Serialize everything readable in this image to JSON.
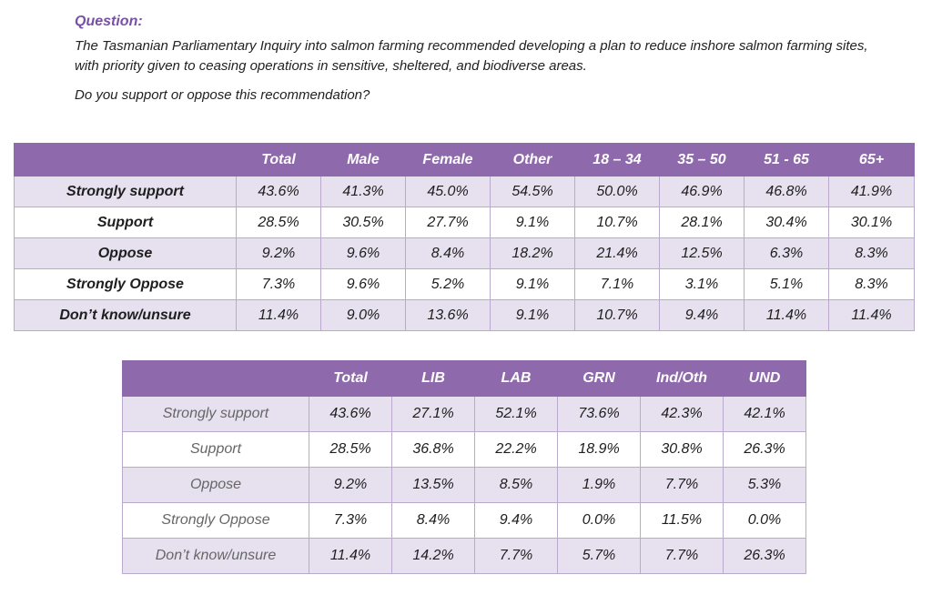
{
  "question": {
    "label": "Question:",
    "text": "The Tasmanian Parliamentary Inquiry into salmon farming recommended developing a plan to reduce inshore salmon farming sites, with priority given to ceasing operations in sensitive, sheltered, and biodiverse areas.",
    "ask": "Do you support or oppose this recommendation?"
  },
  "table1": {
    "headers": [
      "",
      "Total",
      "Male",
      "Female",
      "Other",
      "18 – 34",
      "35 – 50",
      "51 - 65",
      "65+"
    ],
    "rows": [
      {
        "label": "Strongly support",
        "values": [
          "43.6%",
          "41.3%",
          "45.0%",
          "54.5%",
          "50.0%",
          "46.9%",
          "46.8%",
          "41.9%"
        ]
      },
      {
        "label": "Support",
        "values": [
          "28.5%",
          "30.5%",
          "27.7%",
          "9.1%",
          "10.7%",
          "28.1%",
          "30.4%",
          "30.1%"
        ]
      },
      {
        "label": "Oppose",
        "values": [
          "9.2%",
          "9.6%",
          "8.4%",
          "18.2%",
          "21.4%",
          "12.5%",
          "6.3%",
          "8.3%"
        ]
      },
      {
        "label": "Strongly Oppose",
        "values": [
          "7.3%",
          "9.6%",
          "5.2%",
          "9.1%",
          "7.1%",
          "3.1%",
          "5.1%",
          "8.3%"
        ]
      },
      {
        "label": "Don’t know/unsure",
        "values": [
          "11.4%",
          "9.0%",
          "13.6%",
          "9.1%",
          "10.7%",
          "9.4%",
          "11.4%",
          "11.4%"
        ]
      }
    ]
  },
  "table2": {
    "headers": [
      "",
      "Total",
      "LIB",
      "LAB",
      "GRN",
      "Ind/Oth",
      "UND"
    ],
    "rows": [
      {
        "label": "Strongly support",
        "values": [
          "43.6%",
          "27.1%",
          "52.1%",
          "73.6%",
          "42.3%",
          "42.1%"
        ]
      },
      {
        "label": "Support",
        "values": [
          "28.5%",
          "36.8%",
          "22.2%",
          "18.9%",
          "30.8%",
          "26.3%"
        ]
      },
      {
        "label": "Oppose",
        "values": [
          "9.2%",
          "13.5%",
          "8.5%",
          "1.9%",
          "7.7%",
          "5.3%"
        ]
      },
      {
        "label": "Strongly Oppose",
        "values": [
          "7.3%",
          "8.4%",
          "9.4%",
          "0.0%",
          "11.5%",
          "0.0%"
        ]
      },
      {
        "label": "Don’t know/unsure",
        "values": [
          "11.4%",
          "14.2%",
          "7.7%",
          "5.7%",
          "7.7%",
          "26.3%"
        ]
      }
    ]
  }
}
